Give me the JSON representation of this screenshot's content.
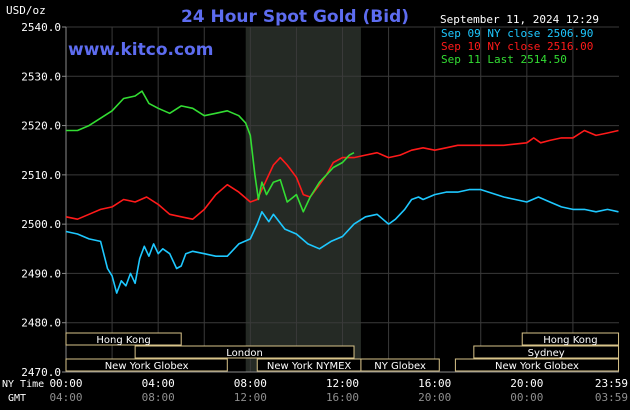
{
  "chart_data": {
    "type": "line",
    "title": "24 Hour Spot Gold (Bid)",
    "unit_label": "USD/oz",
    "watermark": "www.kitco.com",
    "date_label": "September 11, 2024 12:29",
    "ylim": [
      2470,
      2540
    ],
    "y_ticks": [
      "2540.0",
      "2530.0",
      "2520.0",
      "2510.0",
      "2500.0",
      "2490.0",
      "2480.0",
      "2470.0"
    ],
    "y_tick_values": [
      2540,
      2530,
      2520,
      2510,
      2500,
      2490,
      2480,
      2470
    ],
    "x_range_hours": [
      0,
      24
    ],
    "x_ticks_ny": [
      "00:00",
      "04:00",
      "08:00",
      "12:00",
      "16:00",
      "20:00",
      "23:59"
    ],
    "x_ticks_gmt": [
      "04:00",
      "08:00",
      "12:00",
      "16:00",
      "20:00",
      "00:00",
      "03:59"
    ],
    "x_tick_hours": [
      0,
      4,
      8,
      12,
      16,
      20,
      23.98
    ],
    "ny_time_label": "NY Time",
    "gmt_label": "GMT",
    "shade_hours": [
      7.8,
      12.8
    ],
    "legend": [
      {
        "text": "Sep 09 NY close 2506.90",
        "color": "#1ec8ff"
      },
      {
        "text": "Sep 10 NY close 2516.00",
        "color": "#ff1a1a"
      },
      {
        "text": "Sep 11 Last 2514.50",
        "color": "#33dd33"
      }
    ],
    "series": [
      {
        "name": "Sep 09 NY close 2506.90",
        "color": "#1ec8ff",
        "x": [
          0,
          0.5,
          1.0,
          1.5,
          1.8,
          2.0,
          2.2,
          2.4,
          2.6,
          2.8,
          3.0,
          3.2,
          3.4,
          3.6,
          3.8,
          4.0,
          4.2,
          4.5,
          4.8,
          5.0,
          5.2,
          5.5,
          6.0,
          6.5,
          7.0,
          7.5,
          8.0,
          8.3,
          8.5,
          8.8,
          9.0,
          9.5,
          10.0,
          10.5,
          11.0,
          11.5,
          12.0,
          12.5,
          13.0,
          13.5,
          14.0,
          14.3,
          14.7,
          15.0,
          15.3,
          15.5,
          16.0,
          16.5,
          17.0,
          17.5,
          18.0,
          19.0,
          19.5,
          20.0,
          20.5,
          21.0,
          21.5,
          22.0,
          22.5,
          23.0,
          23.5,
          23.98
        ],
        "y": [
          2498.5,
          2498.0,
          2497.0,
          2496.5,
          2491.0,
          2489.5,
          2486.0,
          2488.5,
          2487.5,
          2490.0,
          2488.0,
          2493.0,
          2495.5,
          2493.5,
          2496.0,
          2494.0,
          2495.0,
          2494.0,
          2491.0,
          2491.5,
          2494.0,
          2494.5,
          2494.0,
          2493.5,
          2493.5,
          2496.0,
          2497.0,
          2500.0,
          2502.5,
          2500.5,
          2502.0,
          2499.0,
          2498.0,
          2496.0,
          2495.0,
          2496.5,
          2497.5,
          2500.0,
          2501.5,
          2502.0,
          2500.0,
          2501.0,
          2503.0,
          2505.0,
          2505.5,
          2505.0,
          2506.0,
          2506.5,
          2506.5,
          2507.0,
          2507.0,
          2505.5,
          2505.0,
          2504.5,
          2505.5,
          2504.5,
          2503.5,
          2503.0,
          2503.0,
          2502.5,
          2503.0,
          2502.5
        ]
      },
      {
        "name": "Sep 10 NY close 2516.00",
        "color": "#ff1a1a",
        "x": [
          0,
          0.5,
          1.0,
          1.5,
          2.0,
          2.5,
          3.0,
          3.5,
          4.0,
          4.5,
          5.0,
          5.5,
          6.0,
          6.5,
          7.0,
          7.5,
          8.0,
          8.3,
          8.6,
          9.0,
          9.3,
          9.6,
          10.0,
          10.3,
          10.6,
          11.0,
          11.3,
          11.6,
          12.0,
          12.5,
          13.0,
          13.5,
          14.0,
          14.5,
          15.0,
          15.5,
          16.0,
          16.5,
          17.0,
          18.0,
          19.0,
          20.0,
          20.3,
          20.6,
          21.0,
          21.5,
          22.0,
          22.5,
          23.0,
          23.5,
          23.98
        ],
        "y": [
          2501.5,
          2501.0,
          2502.0,
          2503.0,
          2503.5,
          2505.0,
          2504.5,
          2505.5,
          2504.0,
          2502.0,
          2501.5,
          2501.0,
          2503.0,
          2506.0,
          2508.0,
          2506.5,
          2504.5,
          2505.0,
          2508.0,
          2512.0,
          2513.5,
          2512.0,
          2509.5,
          2506.0,
          2505.5,
          2508.0,
          2510.0,
          2512.5,
          2513.5,
          2513.5,
          2514.0,
          2514.5,
          2513.5,
          2514.0,
          2515.0,
          2515.5,
          2515.0,
          2515.5,
          2516.0,
          2516.0,
          2516.0,
          2516.5,
          2517.5,
          2516.5,
          2517.0,
          2517.5,
          2517.5,
          2519.0,
          2518.0,
          2518.5,
          2519.0
        ]
      },
      {
        "name": "Sep 11 Last 2514.50",
        "color": "#33dd33",
        "x": [
          0,
          0.5,
          1.0,
          1.5,
          2.0,
          2.5,
          3.0,
          3.3,
          3.6,
          4.0,
          4.5,
          5.0,
          5.5,
          6.0,
          6.5,
          7.0,
          7.5,
          7.8,
          8.0,
          8.2,
          8.35,
          8.5,
          8.7,
          9.0,
          9.3,
          9.6,
          10.0,
          10.3,
          10.6,
          11.0,
          11.3,
          11.6,
          12.0,
          12.3,
          12.5
        ],
        "y": [
          2519.0,
          2519.0,
          2520.0,
          2521.5,
          2523.0,
          2525.5,
          2526.0,
          2527.0,
          2524.5,
          2523.5,
          2522.5,
          2524.0,
          2523.5,
          2522.0,
          2522.5,
          2523.0,
          2522.0,
          2520.5,
          2518.0,
          2510.0,
          2505.0,
          2508.5,
          2506.0,
          2508.5,
          2509.0,
          2504.5,
          2506.0,
          2502.5,
          2505.5,
          2508.5,
          2510.0,
          2511.5,
          2512.5,
          2514.0,
          2514.5
        ]
      }
    ],
    "sessions": [
      {
        "label": "Hong Kong",
        "x": [
          0,
          5.0
        ]
      },
      {
        "label": "Hong Kong",
        "x": [
          19.8,
          23.98
        ]
      },
      {
        "label": "London",
        "x": [
          3.0,
          12.5
        ]
      },
      {
        "label": "Sydney",
        "x": [
          17.7,
          23.98
        ]
      },
      {
        "label": "New York Globex",
        "x": [
          0,
          7.0
        ]
      },
      {
        "label": "New York NYMEX",
        "x": [
          8.3,
          12.8
        ]
      },
      {
        "label": "NY Globex",
        "x": [
          12.8,
          16.2
        ]
      },
      {
        "label": "New York Globex",
        "x": [
          16.9,
          23.98
        ]
      }
    ]
  }
}
